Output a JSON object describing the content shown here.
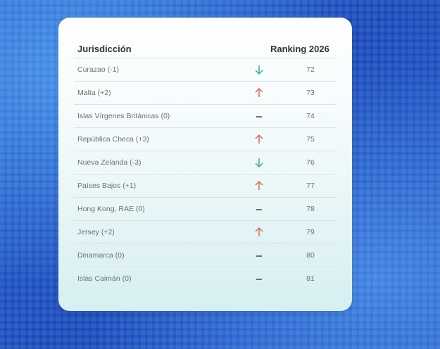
{
  "table": {
    "header": [
      "Jurisdicción",
      "Ranking 2026"
    ],
    "rows": [
      [
        "Curazao (-1)",
        72
      ],
      [
        "Malta (+2)",
        73
      ],
      [
        "Islas Vírgenes Británicas (0)",
        74
      ],
      [
        "República Checa (+3)",
        75
      ],
      [
        "Nueva Zelanda (-3)",
        76
      ],
      [
        "Países Bajos (+1)",
        77
      ],
      [
        "Hong Kong, RAE (0)",
        78
      ],
      [
        "Jersey (+2)",
        79
      ],
      [
        "Dinamarca (0)",
        80
      ],
      [
        "Islas Caimán (0)",
        81
      ]
    ]
  }
}
